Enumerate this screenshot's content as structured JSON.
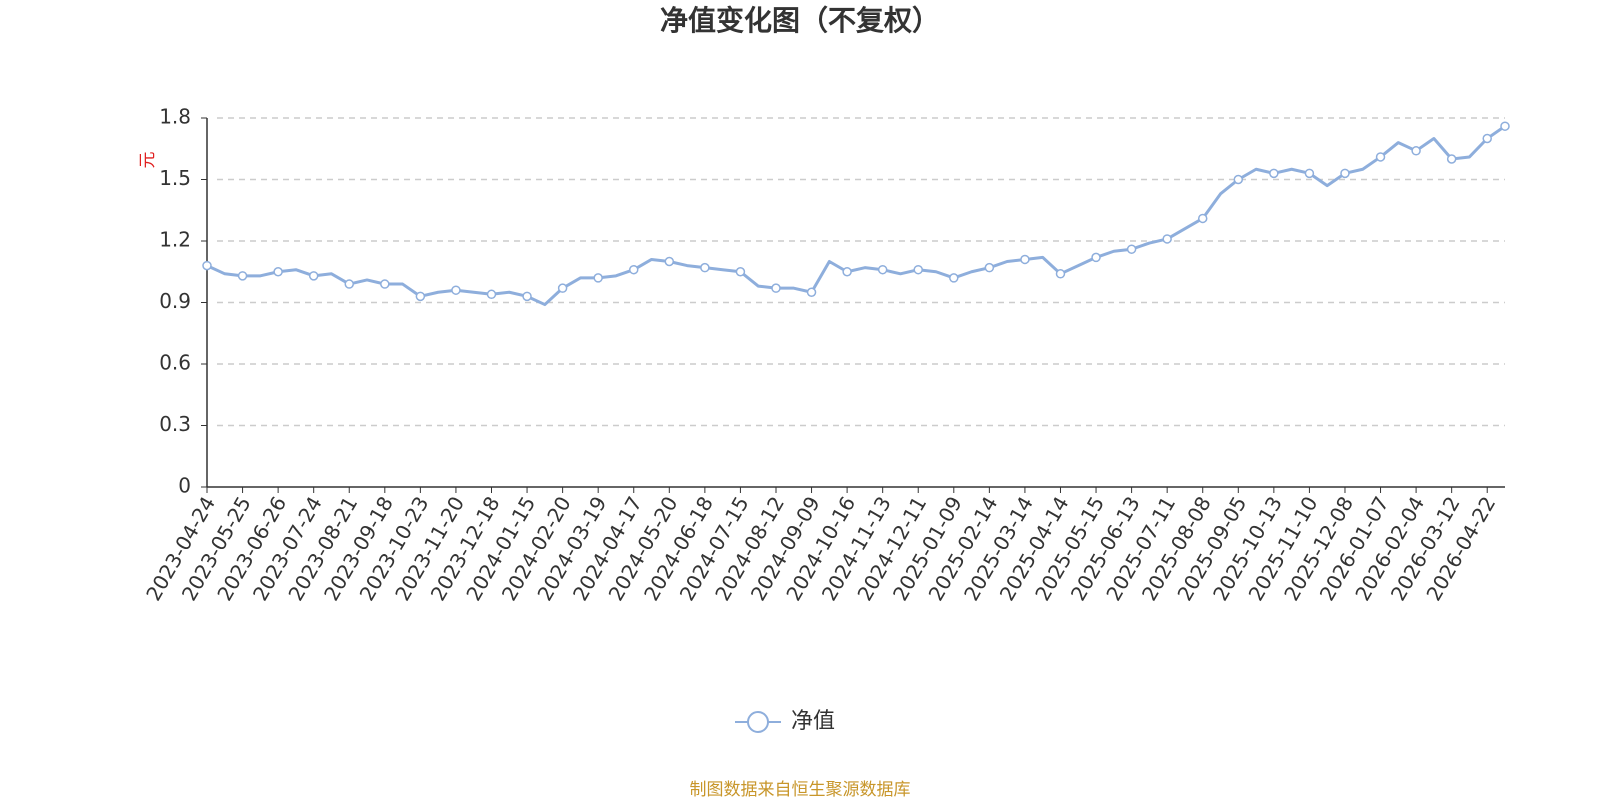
{
  "chart_data": {
    "type": "line",
    "title": "净值变化图（不复权）",
    "y_label": "元",
    "source": "制图数据来自恒生聚源数据库",
    "categories": [
      "2023-04-24",
      null,
      "2023-05-25",
      null,
      "2023-06-26",
      null,
      "2023-07-24",
      null,
      "2023-08-21",
      null,
      "2023-09-18",
      null,
      "2023-10-23",
      null,
      "2023-11-20",
      null,
      "2023-12-18",
      null,
      "2024-01-15",
      null,
      "2024-02-20",
      null,
      "2024-03-19",
      null,
      "2024-04-17",
      null,
      "2024-05-20",
      null,
      "2024-06-18",
      null,
      "2024-07-15",
      null,
      "2024-08-12",
      null,
      "2024-09-09",
      null,
      "2024-10-16",
      null,
      "2024-11-13",
      null,
      "2024-12-11",
      null,
      "2025-01-09",
      null,
      "2025-02-14",
      null,
      "2025-03-14",
      null,
      "2025-04-14",
      null,
      "2025-05-15",
      null,
      "2025-06-13",
      null,
      "2025-07-11",
      null,
      "2025-08-08",
      null,
      "2025-09-05",
      null,
      "2025-10-13",
      null,
      "2025-11-10",
      null,
      "2025-12-08",
      null,
      "2026-01-07",
      null,
      "2026-02-04",
      null,
      "2026-03-12",
      null,
      "2026-04-22",
      null
    ],
    "series": [
      {
        "name": "净值",
        "color": "#8eaedc",
        "values": [
          1.08,
          1.04,
          1.03,
          1.03,
          1.05,
          1.06,
          1.03,
          1.04,
          0.99,
          1.01,
          0.99,
          0.99,
          0.93,
          0.95,
          0.96,
          0.95,
          0.94,
          0.95,
          0.93,
          0.89,
          0.97,
          1.02,
          1.02,
          1.03,
          1.06,
          1.11,
          1.1,
          1.08,
          1.07,
          1.06,
          1.05,
          0.98,
          0.97,
          0.97,
          0.95,
          1.1,
          1.05,
          1.07,
          1.06,
          1.04,
          1.06,
          1.05,
          1.02,
          1.05,
          1.07,
          1.1,
          1.11,
          1.12,
          1.04,
          1.08,
          1.12,
          1.15,
          1.16,
          1.19,
          1.21,
          1.26,
          1.31,
          1.43,
          1.5,
          1.55,
          1.53,
          1.55,
          1.53,
          1.47,
          1.53,
          1.55,
          1.61,
          1.68,
          1.64,
          1.7,
          1.6,
          1.61,
          1.7,
          1.76
        ]
      }
    ],
    "ylim": [
      0,
      1.8
    ],
    "yticks": [
      0,
      0.3,
      0.6,
      0.9,
      1.2,
      1.5,
      1.8
    ],
    "grid": true,
    "legend": "bottom"
  }
}
